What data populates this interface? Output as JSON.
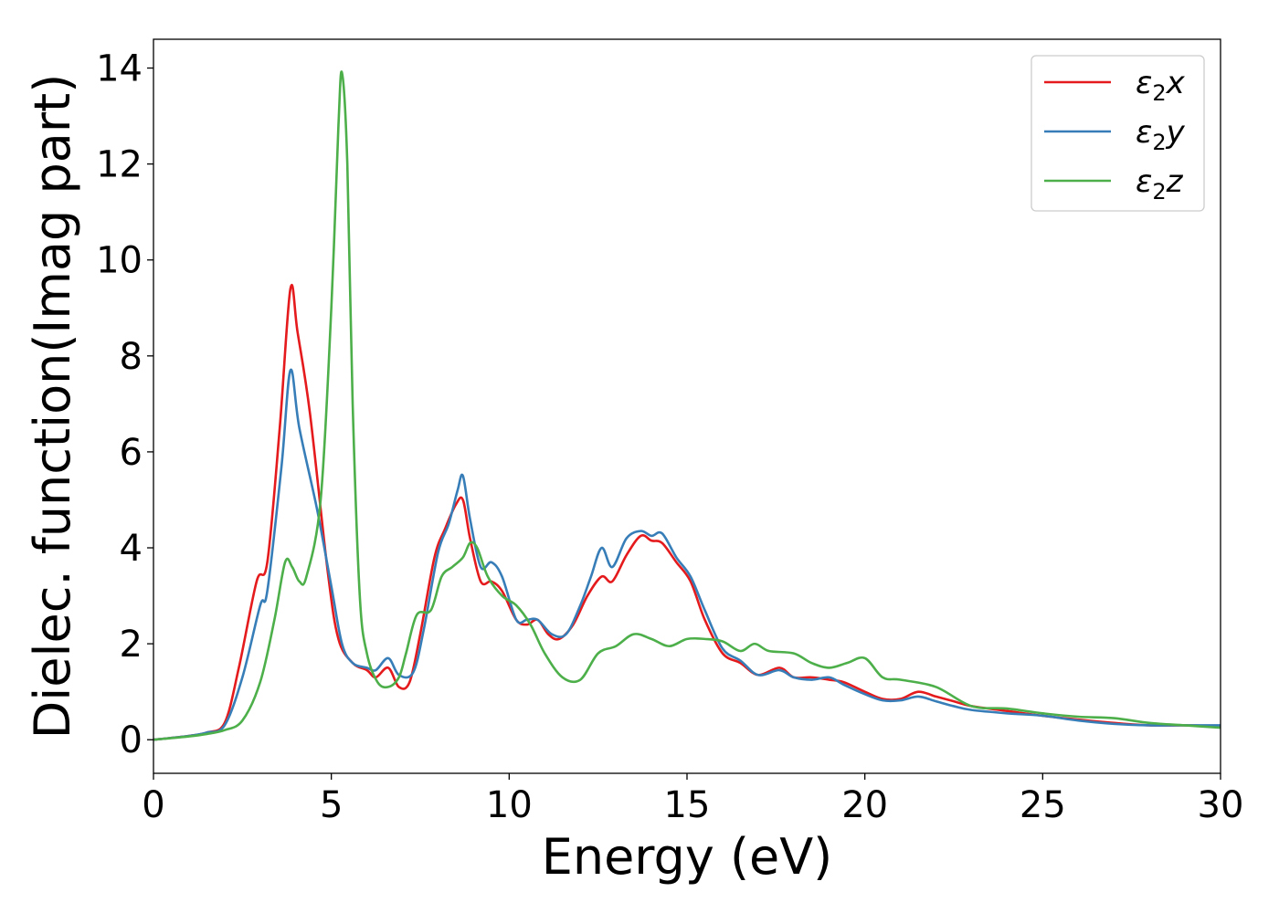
{
  "chart_data": {
    "type": "line",
    "xlabel": "Energy (eV)",
    "ylabel": "Dielec. function(Imag part)",
    "xlim": [
      0,
      30
    ],
    "ylim": [
      -0.7,
      14.6
    ],
    "xticks": [
      0,
      5,
      10,
      15,
      20,
      25,
      30
    ],
    "yticks": [
      0,
      2,
      4,
      6,
      8,
      10,
      12,
      14
    ],
    "xtick_labels": [
      "0",
      "5",
      "10",
      "15",
      "20",
      "25",
      "30"
    ],
    "ytick_labels": [
      "0",
      "2",
      "4",
      "6",
      "8",
      "10",
      "12",
      "14"
    ],
    "legend_position": "top-right",
    "grid": false,
    "series": [
      {
        "name": "ε2x",
        "legend_main": "ε",
        "legend_sub": "2",
        "legend_var": "x",
        "color": "#e41a1c",
        "x": [
          0,
          1,
          1.5,
          2,
          2.4,
          2.9,
          3.2,
          3.55,
          3.85,
          4.05,
          4.4,
          4.9,
          5.2,
          5.6,
          6.0,
          6.25,
          6.6,
          6.9,
          7.2,
          7.5,
          7.9,
          8.2,
          8.5,
          8.7,
          8.9,
          9.2,
          9.5,
          9.8,
          10.2,
          10.5,
          10.8,
          11.1,
          11.4,
          11.8,
          12.2,
          12.6,
          12.9,
          13.3,
          13.7,
          14.0,
          14.3,
          14.7,
          15.1,
          15.5,
          16.0,
          16.5,
          17.0,
          17.6,
          18.0,
          18.5,
          19.0,
          19.4,
          20.0,
          20.5,
          21.0,
          21.5,
          22.0,
          22.5,
          23.0,
          24.0,
          25.0,
          26.0,
          27.0,
          28.0,
          29.0,
          30.0
        ],
        "values": [
          0,
          0.08,
          0.15,
          0.35,
          1.5,
          3.3,
          3.7,
          6.5,
          9.4,
          8.5,
          6.8,
          3.5,
          2.1,
          1.6,
          1.45,
          1.3,
          1.5,
          1.1,
          1.2,
          2.2,
          3.8,
          4.4,
          4.9,
          5.0,
          4.2,
          3.3,
          3.3,
          3.1,
          2.5,
          2.4,
          2.5,
          2.2,
          2.1,
          2.4,
          3.0,
          3.4,
          3.3,
          3.85,
          4.25,
          4.15,
          4.1,
          3.7,
          3.3,
          2.5,
          1.8,
          1.6,
          1.35,
          1.5,
          1.3,
          1.3,
          1.25,
          1.2,
          1.0,
          0.85,
          0.85,
          1.0,
          0.9,
          0.8,
          0.7,
          0.6,
          0.5,
          0.42,
          0.35,
          0.3,
          0.3,
          0.28
        ]
      },
      {
        "name": "ε2y",
        "legend_main": "ε",
        "legend_sub": "2",
        "legend_var": "y",
        "color": "#377eb8",
        "x": [
          0,
          1,
          1.5,
          2,
          2.5,
          3.0,
          3.2,
          3.6,
          3.85,
          4.1,
          4.6,
          5.0,
          5.3,
          5.6,
          6.0,
          6.25,
          6.6,
          6.9,
          7.3,
          7.6,
          8.0,
          8.3,
          8.55,
          8.7,
          8.9,
          9.2,
          9.5,
          9.8,
          10.2,
          10.5,
          10.8,
          11.2,
          11.6,
          12.0,
          12.3,
          12.6,
          12.9,
          13.3,
          13.7,
          14.0,
          14.3,
          14.7,
          15.1,
          15.5,
          16.0,
          16.5,
          17.0,
          17.6,
          18.0,
          18.5,
          19.0,
          19.4,
          20.0,
          20.5,
          21.0,
          21.5,
          22.0,
          22.5,
          23.0,
          24.0,
          25.0,
          26.0,
          27.0,
          28.0,
          29.0,
          30.0
        ],
        "values": [
          0,
          0.08,
          0.15,
          0.3,
          1.3,
          2.8,
          3.1,
          5.7,
          7.7,
          6.5,
          4.8,
          3.2,
          2.0,
          1.6,
          1.5,
          1.45,
          1.7,
          1.35,
          1.4,
          2.3,
          3.9,
          4.5,
          5.2,
          5.5,
          4.6,
          3.6,
          3.7,
          3.4,
          2.5,
          2.5,
          2.5,
          2.2,
          2.2,
          2.8,
          3.4,
          4.0,
          3.6,
          4.2,
          4.35,
          4.25,
          4.3,
          3.8,
          3.4,
          2.7,
          1.9,
          1.65,
          1.35,
          1.45,
          1.3,
          1.25,
          1.3,
          1.15,
          0.95,
          0.82,
          0.82,
          0.9,
          0.8,
          0.7,
          0.62,
          0.55,
          0.5,
          0.4,
          0.33,
          0.3,
          0.3,
          0.3
        ]
      },
      {
        "name": "ε2z",
        "legend_main": "ε",
        "legend_sub": "2",
        "legend_var": "z",
        "color": "#4daf4a",
        "x": [
          0,
          1,
          1.5,
          2,
          2.5,
          3.0,
          3.4,
          3.7,
          3.9,
          4.1,
          4.3,
          4.7,
          5.0,
          5.2,
          5.3,
          5.45,
          5.6,
          5.8,
          6.0,
          6.3,
          6.6,
          6.9,
          7.1,
          7.4,
          7.8,
          8.1,
          8.4,
          8.7,
          8.9,
          9.1,
          9.4,
          9.8,
          10.2,
          10.6,
          11.0,
          11.5,
          12.0,
          12.5,
          13.0,
          13.5,
          14.0,
          14.5,
          15.0,
          15.5,
          16.0,
          16.5,
          16.9,
          17.3,
          18.0,
          18.5,
          19.0,
          19.5,
          20.0,
          20.5,
          21.0,
          22.0,
          23.0,
          24.0,
          25.0,
          26.0,
          27.0,
          28.0,
          29.0,
          30.0
        ],
        "values": [
          0,
          0.07,
          0.12,
          0.2,
          0.4,
          1.2,
          2.5,
          3.7,
          3.6,
          3.3,
          3.4,
          5.0,
          9.0,
          12.8,
          13.9,
          12.0,
          7.0,
          3.0,
          1.8,
          1.2,
          1.1,
          1.3,
          1.8,
          2.6,
          2.7,
          3.4,
          3.6,
          3.8,
          4.1,
          4.0,
          3.4,
          3.0,
          2.8,
          2.4,
          1.8,
          1.3,
          1.25,
          1.8,
          1.95,
          2.2,
          2.1,
          1.95,
          2.1,
          2.1,
          2.05,
          1.85,
          2.0,
          1.85,
          1.8,
          1.6,
          1.5,
          1.6,
          1.7,
          1.3,
          1.25,
          1.1,
          0.7,
          0.65,
          0.55,
          0.48,
          0.45,
          0.35,
          0.3,
          0.25
        ]
      }
    ]
  }
}
